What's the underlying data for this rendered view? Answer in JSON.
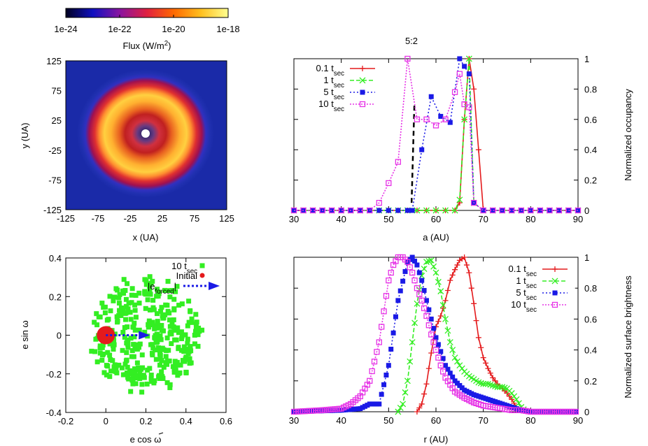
{
  "colors": {
    "red": "#e41a1c",
    "green": "#33ee22",
    "blue": "#1a1ae6",
    "magenta": "#e633e6",
    "dash": "#000000"
  },
  "chart_data": [
    {
      "type": "heatmap",
      "colorbar": {
        "ticks": [
          "1e-24",
          "1e-22",
          "1e-20",
          "1e-18"
        ],
        "label": "Flux (W/m",
        "label_sup": "2",
        "label_end": ")",
        "colormap": [
          "#000000",
          "#1010c0",
          "#b01070",
          "#ff3a00",
          "#ffd02a",
          "#ffffa0"
        ]
      },
      "xlabel": "x (UA)",
      "ylabel": "y (UA)",
      "xlim": [
        -125,
        125
      ],
      "ylim": [
        -125,
        125
      ],
      "xticks": [
        -125,
        -75,
        -25,
        25,
        75,
        125
      ],
      "yticks": [
        -125,
        -75,
        -25,
        25,
        75,
        125
      ],
      "grid": false
    },
    {
      "type": "line",
      "xlabel": "a (AU)",
      "ylabel": "Normalized occupancy",
      "xlim": [
        30,
        90
      ],
      "ylim": [
        0,
        1
      ],
      "xticks": [
        30,
        40,
        50,
        60,
        70,
        80,
        90
      ],
      "yticks": [
        0,
        0.2,
        0.4,
        0.6,
        0.8,
        1
      ],
      "annotation": "5:2",
      "annotation_x": 55,
      "legend": "top-left",
      "series": [
        {
          "name": "0.1 t",
          "sub": "sec",
          "color": "red",
          "marker": "plus",
          "dash": "",
          "x": [
            30,
            32,
            34,
            36,
            38,
            40,
            42,
            44,
            46,
            48,
            50,
            52,
            54,
            56,
            58,
            60,
            62,
            64,
            65,
            66,
            67,
            68,
            69,
            70,
            72,
            74,
            76,
            78,
            80,
            82,
            84,
            86,
            88,
            90
          ],
          "y": [
            0,
            0,
            0,
            0,
            0,
            0,
            0,
            0,
            0,
            0,
            0,
            0,
            0,
            0,
            0,
            0,
            0,
            0,
            0.05,
            0.6,
            1,
            0.8,
            0.4,
            0,
            0,
            0,
            0,
            0,
            0,
            0,
            0,
            0,
            0,
            0
          ]
        },
        {
          "name": "1 t",
          "sub": "sec",
          "color": "green",
          "marker": "x",
          "dash": "6,3",
          "x": [
            30,
            32,
            34,
            36,
            38,
            40,
            42,
            44,
            46,
            48,
            50,
            52,
            54,
            56,
            58,
            60,
            62,
            64,
            65,
            66,
            67,
            68,
            70,
            72,
            74,
            76,
            78,
            80,
            82,
            84,
            86,
            88,
            90
          ],
          "y": [
            0,
            0,
            0,
            0,
            0,
            0,
            0,
            0,
            0,
            0,
            0,
            0,
            0,
            0,
            0,
            0,
            0,
            0,
            0.07,
            0.6,
            1,
            0.05,
            0,
            0,
            0,
            0,
            0,
            0,
            0,
            0,
            0,
            0,
            0
          ]
        },
        {
          "name": "5 t",
          "sub": "sec",
          "color": "blue",
          "marker": "square",
          "dash": "2,3",
          "x": [
            30,
            32,
            34,
            36,
            38,
            40,
            42,
            44,
            46,
            48,
            50,
            52,
            54,
            55,
            57,
            59,
            61,
            63,
            65,
            66,
            67,
            68,
            70,
            72,
            74,
            76,
            78,
            80,
            82,
            84,
            86,
            88,
            90
          ],
          "y": [
            0,
            0,
            0,
            0,
            0,
            0,
            0,
            0,
            0,
            0,
            0,
            0,
            0,
            0,
            0.4,
            0.75,
            0.62,
            0.58,
            1,
            0.95,
            0.9,
            0.05,
            0,
            0,
            0,
            0,
            0,
            0,
            0,
            0,
            0,
            0,
            0
          ]
        },
        {
          "name": "10 t",
          "sub": "sec",
          "color": "magenta",
          "marker": "opensquare",
          "dash": "2,2",
          "x": [
            30,
            32,
            34,
            36,
            38,
            40,
            42,
            44,
            46,
            48,
            50,
            52,
            54,
            56,
            58,
            60,
            62,
            64,
            65,
            66,
            67,
            68,
            70,
            72,
            74,
            76,
            78,
            80,
            82,
            84,
            86,
            88,
            90
          ],
          "y": [
            0,
            0,
            0,
            0,
            0,
            0,
            0,
            0,
            0,
            0.05,
            0.18,
            0.32,
            1,
            0.6,
            0.6,
            0.56,
            0.6,
            0.78,
            0.9,
            0.7,
            0.68,
            0.05,
            0,
            0,
            0,
            0,
            0,
            0,
            0,
            0,
            0,
            0,
            0
          ]
        }
      ]
    },
    {
      "type": "scatter",
      "xlabel": "e cos ω",
      "ylabel": "e sin ω",
      "xlim": [
        -0.2,
        0.6
      ],
      "ylim": [
        -0.4,
        0.4
      ],
      "xticks": [
        -0.2,
        0,
        0.2,
        0.4,
        0.6
      ],
      "xtick_labels": [
        "-0.2",
        "0",
        "0.2",
        "0.4",
        "0.6"
      ],
      "yticks": [
        -0.4,
        -0.2,
        0,
        0.2,
        0.4
      ],
      "ytick_labels": [
        "-0.4",
        "-0.2",
        "0",
        "0.2",
        "0.4"
      ],
      "legend": "top-right",
      "series": [
        {
          "name": "10 t",
          "sub": "sec",
          "color": "green",
          "marker": "square",
          "count": 380,
          "center": [
            0.2,
            0.0
          ],
          "radius": 0.26
        },
        {
          "name": "Initial",
          "color": "red",
          "marker": "circle",
          "points": [
            [
              0,
              0
            ]
          ]
        }
      ],
      "arrow": {
        "label": "|e",
        "label_sub": "forced",
        "label_end": "|",
        "from": [
          0,
          0
        ],
        "to": [
          0.22,
          0
        ]
      }
    },
    {
      "type": "line",
      "xlabel": "r (AU)",
      "ylabel": "Normalized surface brightness",
      "xlim": [
        30,
        90
      ],
      "ylim": [
        0,
        1
      ],
      "xticks": [
        30,
        40,
        50,
        60,
        70,
        80,
        90
      ],
      "yticks": [
        0,
        0.2,
        0.4,
        0.6,
        0.8,
        1
      ],
      "legend": "top-right",
      "series": [
        {
          "name": "0.1 t",
          "sub": "sec",
          "color": "red",
          "marker": "plus",
          "dash": "",
          "x": [
            56,
            57,
            58,
            59,
            60,
            61,
            62,
            63,
            64,
            65,
            66,
            67,
            68,
            69,
            70,
            71,
            72,
            73,
            74,
            75,
            76,
            77,
            78
          ],
          "y": [
            0,
            0.05,
            0.18,
            0.38,
            0.55,
            0.62,
            0.72,
            0.85,
            0.92,
            0.98,
            1,
            0.9,
            0.7,
            0.48,
            0.35,
            0.28,
            0.22,
            0.18,
            0.15,
            0.12,
            0.08,
            0.03,
            0
          ]
        },
        {
          "name": "1 t",
          "sub": "sec",
          "color": "green",
          "marker": "x",
          "dash": "6,3",
          "x": [
            52,
            53,
            54,
            55,
            56,
            57,
            58,
            59,
            60,
            61,
            62,
            63,
            64,
            65,
            66,
            67,
            68,
            69,
            70,
            71,
            72,
            73,
            74,
            75,
            76,
            77,
            78,
            79
          ],
          "y": [
            0,
            0.05,
            0.2,
            0.45,
            0.7,
            0.88,
            0.97,
            0.98,
            0.9,
            0.78,
            0.6,
            0.45,
            0.35,
            0.3,
            0.26,
            0.23,
            0.21,
            0.19,
            0.18,
            0.18,
            0.17,
            0.16,
            0.16,
            0.15,
            0.12,
            0.08,
            0.03,
            0
          ]
        },
        {
          "name": "5 t",
          "sub": "sec",
          "color": "blue",
          "marker": "square",
          "dash": "2,3",
          "x": [
            30,
            40,
            44,
            46,
            48,
            50,
            52,
            54,
            55,
            56,
            57,
            58,
            60,
            62,
            64,
            66,
            68,
            70,
            72,
            74,
            76,
            78,
            80,
            90
          ],
          "y": [
            0,
            0.01,
            0.02,
            0.05,
            0.05,
            0.3,
            0.72,
            0.97,
            1,
            0.95,
            0.85,
            0.72,
            0.48,
            0.3,
            0.2,
            0.14,
            0.11,
            0.09,
            0.07,
            0.05,
            0.03,
            0.01,
            0,
            0
          ]
        },
        {
          "name": "10 t",
          "sub": "sec",
          "color": "magenta",
          "marker": "opensquare",
          "dash": "2,2",
          "x": [
            30,
            36,
            40,
            42,
            44,
            46,
            48,
            49,
            50,
            51,
            52,
            53,
            54,
            55,
            56,
            57,
            58,
            59,
            60,
            61,
            62,
            64,
            66,
            68,
            70,
            72,
            74,
            76,
            78,
            80,
            90
          ],
          "y": [
            0,
            0.01,
            0.02,
            0.05,
            0.1,
            0.2,
            0.45,
            0.65,
            0.85,
            0.95,
            1,
            1,
            0.97,
            0.9,
            0.8,
            0.72,
            0.62,
            0.5,
            0.4,
            0.3,
            0.22,
            0.13,
            0.09,
            0.06,
            0.04,
            0.03,
            0.02,
            0.01,
            0.01,
            0,
            0
          ]
        }
      ]
    }
  ]
}
